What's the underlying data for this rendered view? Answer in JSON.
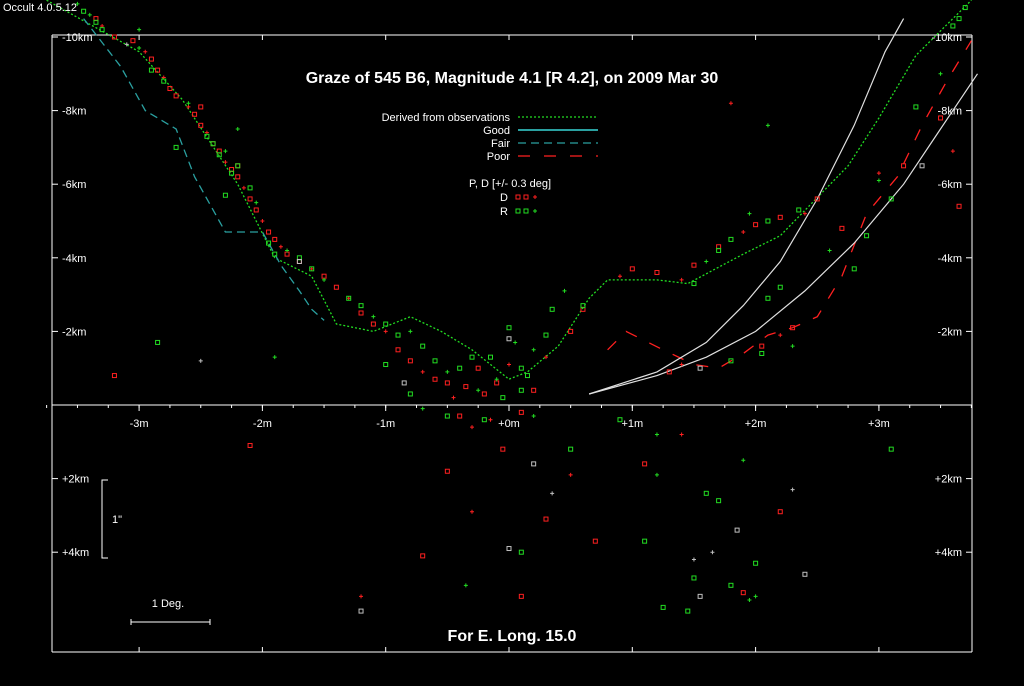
{
  "app": {
    "version": "Occult 4.0.5.12"
  },
  "chart_data": {
    "type": "scatter",
    "title": "Graze of  545 B6,  Magnitude 4.1 [R 4.2],  on 2009 Mar 30",
    "footer": "For E. Long. 15.0",
    "x_unit": "m",
    "y_unit": "km",
    "xlim": [
      -3.8,
      3.8
    ],
    "ylim": [
      -10.5,
      6.5
    ],
    "x_ticks": [
      {
        "value": -3,
        "label": "-3m"
      },
      {
        "value": -2,
        "label": "-2m"
      },
      {
        "value": -1,
        "label": "-1m"
      },
      {
        "value": 0,
        "label": "+0m"
      },
      {
        "value": 1,
        "label": "+1m"
      },
      {
        "value": 2,
        "label": "+2m"
      },
      {
        "value": 3,
        "label": "+3m"
      }
    ],
    "y_ticks": [
      {
        "value": -10,
        "label": "-10km"
      },
      {
        "value": -8,
        "label": "-8km"
      },
      {
        "value": -6,
        "label": "-6km"
      },
      {
        "value": -4,
        "label": "-4km"
      },
      {
        "value": -2,
        "label": "-2km"
      },
      {
        "value": 2,
        "label": "+2km"
      },
      {
        "value": 4,
        "label": "+4km"
      }
    ],
    "scale_bars": {
      "vertical": "1\"",
      "horizontal": "1 Deg."
    },
    "legend": {
      "lines": [
        {
          "label": "Derived from observations",
          "color": "#22dd22",
          "style": "dotted"
        },
        {
          "label": "Good",
          "color": "#2aa0a0",
          "style": "solid"
        },
        {
          "label": "Fair",
          "color": "#2aa0a0",
          "style": "dashed"
        },
        {
          "label": "Poor",
          "color": "#ff2020",
          "style": "longdash"
        }
      ],
      "points_title": "P, D [+/- 0.3 deg]",
      "points": [
        {
          "label": "D",
          "color": "#ff2020"
        },
        {
          "label": "R",
          "color": "#22dd22"
        }
      ]
    },
    "series": [
      {
        "name": "Derived from observations",
        "color": "#22dd22",
        "style": "dotted",
        "points": [
          [
            -3.75,
            -11
          ],
          [
            -3.0,
            -9.6
          ],
          [
            -2.65,
            -8.3
          ],
          [
            -2.2,
            -6.0
          ],
          [
            -1.9,
            -4.0
          ],
          [
            -1.6,
            -3.5
          ],
          [
            -1.4,
            -2.2
          ],
          [
            -1.1,
            -2.0
          ],
          [
            -0.8,
            -2.4
          ],
          [
            -0.55,
            -2.0
          ],
          [
            -0.3,
            -1.5
          ],
          [
            -0.15,
            -1.1
          ],
          [
            0.0,
            -0.7
          ],
          [
            0.15,
            -0.9
          ],
          [
            0.4,
            -1.6
          ],
          [
            0.65,
            -2.9
          ],
          [
            0.8,
            -3.4
          ],
          [
            1.2,
            -3.4
          ],
          [
            1.45,
            -3.3
          ],
          [
            1.9,
            -4.1
          ],
          [
            2.2,
            -4.6
          ],
          [
            2.75,
            -6.5
          ],
          [
            3.0,
            -7.8
          ],
          [
            3.3,
            -9.5
          ],
          [
            3.75,
            -11
          ]
        ]
      },
      {
        "name": "Fair",
        "color": "#2aa0a0",
        "style": "dashed",
        "points": [
          [
            -3.45,
            -10.5
          ],
          [
            -3.15,
            -9.2
          ],
          [
            -2.95,
            -8.0
          ],
          [
            -2.7,
            -7.5
          ],
          [
            -2.55,
            -6.2
          ],
          [
            -2.3,
            -4.7
          ],
          [
            -2.0,
            -4.7
          ],
          [
            -1.85,
            -3.8
          ],
          [
            -1.7,
            -3.1
          ],
          [
            -1.6,
            -2.6
          ],
          [
            -1.5,
            -2.3
          ]
        ]
      },
      {
        "name": "Poor",
        "color": "#ff2020",
        "style": "longdash",
        "points": [
          [
            0.8,
            -1.5
          ],
          [
            0.95,
            -2.0
          ],
          [
            1.25,
            -1.5
          ],
          [
            1.5,
            -1.1
          ],
          [
            1.7,
            -1.0
          ],
          [
            1.9,
            -1.4
          ],
          [
            2.1,
            -1.9
          ],
          [
            2.3,
            -2.1
          ],
          [
            2.5,
            -2.4
          ],
          [
            2.7,
            -3.5
          ],
          [
            2.9,
            -5.2
          ],
          [
            3.15,
            -6.2
          ],
          [
            3.35,
            -7.6
          ],
          [
            3.55,
            -8.8
          ],
          [
            3.75,
            -9.9
          ]
        ]
      },
      {
        "name": "",
        "color": "#e0e0e0",
        "style": "solid",
        "points": [
          [
            0.65,
            -0.3
          ],
          [
            1.2,
            -0.9
          ],
          [
            1.6,
            -1.7
          ],
          [
            1.9,
            -2.7
          ],
          [
            2.2,
            -3.9
          ],
          [
            2.5,
            -5.6
          ],
          [
            2.8,
            -7.6
          ],
          [
            3.05,
            -9.6
          ],
          [
            3.2,
            -10.5
          ]
        ]
      },
      {
        "name": "",
        "color": "#e0e0e0",
        "style": "solid",
        "points": [
          [
            0.65,
            -0.3
          ],
          [
            1.2,
            -0.8
          ],
          [
            1.6,
            -1.3
          ],
          [
            2.0,
            -2.0
          ],
          [
            2.4,
            -3.1
          ],
          [
            2.8,
            -4.4
          ],
          [
            3.2,
            -6.0
          ],
          [
            3.5,
            -7.5
          ],
          [
            3.8,
            -9.0
          ]
        ]
      }
    ],
    "points": {
      "D": {
        "color": "#ff2020",
        "values": [
          [
            -3.35,
            -10.5
          ],
          [
            -3.3,
            -10.3
          ],
          [
            -3.2,
            -10.0
          ],
          [
            -3.05,
            -9.9
          ],
          [
            -2.95,
            -9.6
          ],
          [
            -2.9,
            -9.4
          ],
          [
            -2.85,
            -9.1
          ],
          [
            -2.8,
            -8.9
          ],
          [
            -2.75,
            -8.6
          ],
          [
            -2.7,
            -8.4
          ],
          [
            -2.6,
            -8.1
          ],
          [
            -2.55,
            -7.9
          ],
          [
            -2.5,
            -7.6
          ],
          [
            -2.45,
            -7.4
          ],
          [
            -2.4,
            -7.1
          ],
          [
            -2.35,
            -6.9
          ],
          [
            -2.3,
            -6.6
          ],
          [
            -2.25,
            -6.4
          ],
          [
            -2.2,
            -6.2
          ],
          [
            -2.15,
            -5.9
          ],
          [
            -2.1,
            -5.6
          ],
          [
            -2.05,
            -5.3
          ],
          [
            -2.0,
            -5.0
          ],
          [
            -1.95,
            -4.7
          ],
          [
            -1.9,
            -4.5
          ],
          [
            -1.85,
            -4.3
          ],
          [
            -1.8,
            -4.1
          ],
          [
            -1.7,
            -3.9
          ],
          [
            -1.6,
            -3.7
          ],
          [
            -1.5,
            -3.5
          ],
          [
            -1.4,
            -3.2
          ],
          [
            -1.3,
            -2.9
          ],
          [
            -1.2,
            -2.5
          ],
          [
            -1.1,
            -2.2
          ],
          [
            -1.0,
            -2.0
          ],
          [
            -0.9,
            -1.5
          ],
          [
            -0.8,
            -1.2
          ],
          [
            -0.7,
            -0.9
          ],
          [
            -0.6,
            -0.7
          ],
          [
            -0.5,
            -0.6
          ],
          [
            -0.45,
            -0.2
          ],
          [
            -0.4,
            0.3
          ],
          [
            -0.35,
            -0.5
          ],
          [
            -0.3,
            0.6
          ],
          [
            -0.25,
            -1.0
          ],
          [
            -0.2,
            -0.3
          ],
          [
            -0.15,
            0.4
          ],
          [
            -0.1,
            -0.6
          ],
          [
            -0.05,
            1.2
          ],
          [
            0.0,
            -1.1
          ],
          [
            0.1,
            0.2
          ],
          [
            0.2,
            -0.4
          ],
          [
            0.3,
            -1.3
          ],
          [
            0.5,
            -2.0
          ],
          [
            0.6,
            -2.6
          ],
          [
            0.9,
            -3.5
          ],
          [
            1.0,
            -3.7
          ],
          [
            1.2,
            -3.6
          ],
          [
            1.4,
            -3.4
          ],
          [
            1.5,
            -3.8
          ],
          [
            1.7,
            -4.3
          ],
          [
            1.9,
            -4.7
          ],
          [
            2.0,
            -4.9
          ],
          [
            2.2,
            -5.1
          ],
          [
            2.4,
            -5.2
          ],
          [
            2.5,
            -5.6
          ],
          [
            2.7,
            -4.8
          ],
          [
            3.0,
            -6.3
          ],
          [
            3.2,
            -6.5
          ],
          [
            3.5,
            -7.8
          ],
          [
            3.6,
            -6.9
          ],
          [
            3.65,
            -5.4
          ],
          [
            2.3,
            -2.1
          ],
          [
            2.2,
            -1.9
          ],
          [
            2.05,
            -1.6
          ],
          [
            1.3,
            -0.9
          ],
          [
            1.4,
            -1.1
          ],
          [
            -3.2,
            -0.8
          ],
          [
            -2.1,
            1.1
          ],
          [
            -1.2,
            5.2
          ],
          [
            -0.7,
            4.1
          ],
          [
            -0.5,
            1.8
          ],
          [
            -0.3,
            2.9
          ],
          [
            0.1,
            5.2
          ],
          [
            0.3,
            3.1
          ],
          [
            0.5,
            1.9
          ],
          [
            0.7,
            3.7
          ],
          [
            1.1,
            1.6
          ],
          [
            1.4,
            0.8
          ],
          [
            1.9,
            5.1
          ],
          [
            2.2,
            2.9
          ],
          [
            1.8,
            -8.2
          ],
          [
            -2.2,
            -6.5
          ],
          [
            -2.5,
            -8.1
          ]
        ]
      },
      "R": {
        "color": "#22dd22",
        "values": [
          [
            -3.45,
            -10.7
          ],
          [
            -3.4,
            -10.6
          ],
          [
            -3.35,
            -10.4
          ],
          [
            -3.3,
            -10.2
          ],
          [
            -3.0,
            -10.2
          ],
          [
            -2.9,
            -9.1
          ],
          [
            -2.8,
            -8.8
          ],
          [
            -2.6,
            -8.2
          ],
          [
            -2.45,
            -7.3
          ],
          [
            -2.35,
            -6.8
          ],
          [
            -2.3,
            -6.9
          ],
          [
            -2.2,
            -6.5
          ],
          [
            -2.1,
            -5.9
          ],
          [
            -2.05,
            -5.5
          ],
          [
            -1.95,
            -4.4
          ],
          [
            -1.9,
            -4.1
          ],
          [
            -1.8,
            -4.2
          ],
          [
            -1.7,
            -4.0
          ],
          [
            -1.6,
            -3.7
          ],
          [
            -1.5,
            -3.4
          ],
          [
            -1.3,
            -2.9
          ],
          [
            -1.2,
            -2.7
          ],
          [
            -1.1,
            -2.4
          ],
          [
            -1.0,
            -2.2
          ],
          [
            -0.9,
            -1.9
          ],
          [
            -0.8,
            -2.0
          ],
          [
            -0.7,
            -1.6
          ],
          [
            -0.6,
            -1.2
          ],
          [
            -0.5,
            -0.9
          ],
          [
            -0.4,
            -1.0
          ],
          [
            -0.3,
            -1.3
          ],
          [
            -0.25,
            -0.4
          ],
          [
            -0.2,
            0.4
          ],
          [
            -0.15,
            -1.3
          ],
          [
            -0.1,
            -0.7
          ],
          [
            -0.05,
            -0.2
          ],
          [
            0.0,
            -2.1
          ],
          [
            0.05,
            -1.7
          ],
          [
            0.1,
            -1.0
          ],
          [
            0.15,
            -0.8
          ],
          [
            0.2,
            -1.5
          ],
          [
            0.3,
            -1.9
          ],
          [
            0.35,
            -2.6
          ],
          [
            0.45,
            -3.1
          ],
          [
            0.6,
            -2.7
          ],
          [
            1.5,
            -3.3
          ],
          [
            1.6,
            -3.9
          ],
          [
            1.7,
            -4.2
          ],
          [
            1.8,
            -4.5
          ],
          [
            1.95,
            -5.2
          ],
          [
            2.1,
            -5.0
          ],
          [
            2.35,
            -5.3
          ],
          [
            2.6,
            -4.2
          ],
          [
            2.8,
            -3.7
          ],
          [
            2.9,
            -4.6
          ],
          [
            3.0,
            -6.1
          ],
          [
            3.1,
            -5.6
          ],
          [
            3.3,
            -8.1
          ],
          [
            3.5,
            -9.0
          ],
          [
            3.6,
            -10.3
          ],
          [
            3.7,
            -10.8
          ],
          [
            2.1,
            -7.6
          ],
          [
            2.1,
            -2.9
          ],
          [
            2.2,
            -3.2
          ],
          [
            2.3,
            -1.6
          ],
          [
            2.05,
            -1.4
          ],
          [
            1.8,
            -1.2
          ],
          [
            -3.0,
            -9.7
          ],
          [
            -2.7,
            -7.0
          ],
          [
            -2.3,
            -5.7
          ],
          [
            -1.9,
            -1.3
          ],
          [
            -1.0,
            -1.1
          ],
          [
            -0.8,
            -0.3
          ],
          [
            -0.7,
            0.1
          ],
          [
            -0.5,
            0.3
          ],
          [
            0.1,
            -0.4
          ],
          [
            0.2,
            0.3
          ],
          [
            0.5,
            1.2
          ],
          [
            0.9,
            0.4
          ],
          [
            1.2,
            0.8
          ],
          [
            1.6,
            2.4
          ],
          [
            1.7,
            2.6
          ],
          [
            1.9,
            1.5
          ],
          [
            2.0,
            4.3
          ],
          [
            1.1,
            3.7
          ],
          [
            1.2,
            1.9
          ],
          [
            1.5,
            4.7
          ],
          [
            1.8,
            4.9
          ],
          [
            1.95,
            5.3
          ],
          [
            1.25,
            5.5
          ],
          [
            0.1,
            4.0
          ],
          [
            -0.35,
            4.9
          ],
          [
            3.1,
            1.2
          ],
          [
            -2.85,
            -1.7
          ],
          [
            -2.2,
            -7.5
          ],
          [
            -2.25,
            -6.3
          ],
          [
            -2.4,
            -7.1
          ],
          [
            -3.5,
            -10.9
          ],
          [
            3.65,
            -10.5
          ],
          [
            1.45,
            5.6
          ],
          [
            2.0,
            5.2
          ]
        ]
      },
      "other": {
        "color": "#c0c0c0",
        "values": [
          [
            -0.85,
            -0.6
          ],
          [
            -2.5,
            -1.2
          ],
          [
            0.0,
            -1.8
          ],
          [
            0.2,
            1.6
          ],
          [
            0.35,
            2.4
          ],
          [
            1.55,
            -1.0
          ],
          [
            1.55,
            5.2
          ],
          [
            1.65,
            4.0
          ],
          [
            1.85,
            3.4
          ],
          [
            2.4,
            4.6
          ],
          [
            2.3,
            2.3
          ],
          [
            3.35,
            -6.5
          ],
          [
            -1.2,
            5.6
          ],
          [
            -3.1,
            -9.8
          ],
          [
            -1.7,
            -3.9
          ],
          [
            0.0,
            3.9
          ],
          [
            1.5,
            4.2
          ]
        ]
      }
    }
  }
}
